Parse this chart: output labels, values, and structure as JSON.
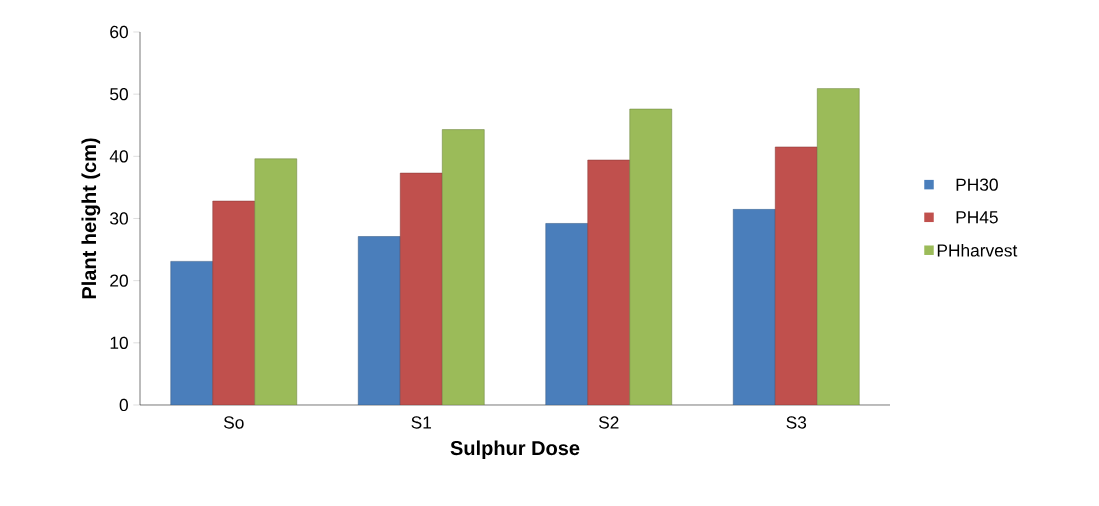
{
  "chart_data": {
    "type": "bar",
    "xlabel": "Sulphur Dose",
    "ylabel": "Plant height (cm)",
    "categories": [
      "So",
      "S1",
      "S2",
      "S3"
    ],
    "series": [
      {
        "name": "PH30",
        "color": "#4a7ebb",
        "values": [
          23.1,
          27.1,
          29.2,
          31.5
        ]
      },
      {
        "name": "PH45",
        "color": "#c0504d",
        "values": [
          32.8,
          37.3,
          39.4,
          41.5
        ]
      },
      {
        "name": "PHharvest",
        "color": "#9bbb59",
        "values": [
          39.6,
          44.3,
          47.6,
          50.9
        ]
      }
    ],
    "ylim": [
      0,
      60
    ],
    "yticks": [
      0,
      10,
      20,
      30,
      40,
      50,
      60
    ],
    "grid": false,
    "legend": "right"
  }
}
